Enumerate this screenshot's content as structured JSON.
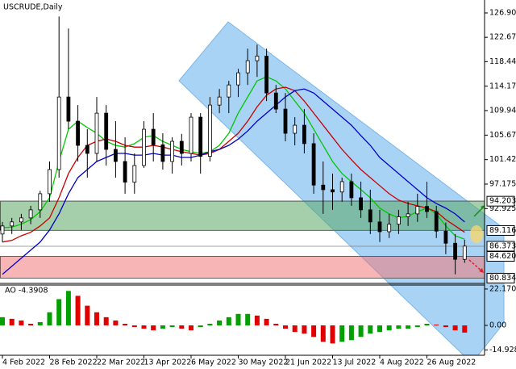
{
  "chart_data": {
    "type": "candlestick",
    "title": "USCRUDE,Daily",
    "categories": [
      "4 Feb 2022",
      null,
      null,
      null,
      null,
      "28 Feb 2022",
      null,
      null,
      null,
      null,
      "22 Mar 2022",
      null,
      null,
      null,
      null,
      "13 Apr 2022",
      null,
      null,
      null,
      null,
      "6 May 2022",
      null,
      null,
      null,
      null,
      "30 May 2022",
      null,
      null,
      null,
      null,
      "21 Jun 2022",
      null,
      null,
      null,
      null,
      "13 Jul 2022",
      null,
      null,
      null,
      null,
      "4 Aug 2022",
      null,
      null,
      null,
      null,
      "26 Aug 2022",
      null,
      null,
      null,
      null
    ],
    "ohlc": [
      [
        88.5,
        90.6,
        87.1,
        89.9
      ],
      [
        89.9,
        91.3,
        88.5,
        90.6
      ],
      [
        90.6,
        92.0,
        89.2,
        91.3
      ],
      [
        91.3,
        93.4,
        90.2,
        92.7
      ],
      [
        92.7,
        96.0,
        91.3,
        95.5
      ],
      [
        95.5,
        101.1,
        94.1,
        99.7
      ],
      [
        99.7,
        126.3,
        98.3,
        112.3
      ],
      [
        112.3,
        124.2,
        106.7,
        108.1
      ],
      [
        108.1,
        110.9,
        101.1,
        103.9
      ],
      [
        103.9,
        106.7,
        98.3,
        102.5
      ],
      [
        102.5,
        112.3,
        101.1,
        109.5
      ],
      [
        109.5,
        110.9,
        100.4,
        103.2
      ],
      [
        103.2,
        108.1,
        98.3,
        101.1
      ],
      [
        101.1,
        105.3,
        95.5,
        97.5
      ],
      [
        97.5,
        102.5,
        95.5,
        100.4
      ],
      [
        100.4,
        108.1,
        100.0,
        106.7
      ],
      [
        106.7,
        109.5,
        101.1,
        104.0
      ],
      [
        104.0,
        106.0,
        99.7,
        101.1
      ],
      [
        101.1,
        105.3,
        99.0,
        104.6
      ],
      [
        104.6,
        105.9,
        100.4,
        102.5
      ],
      [
        102.5,
        109.5,
        101.1,
        108.8
      ],
      [
        108.8,
        109.5,
        99.0,
        102.0
      ],
      [
        102.0,
        112.3,
        101.1,
        110.9
      ],
      [
        110.9,
        113.7,
        109.5,
        112.3
      ],
      [
        112.3,
        115.1,
        109.5,
        114.4
      ],
      [
        114.4,
        117.2,
        112.3,
        116.5
      ],
      [
        116.5,
        120.7,
        114.4,
        118.6
      ],
      [
        118.6,
        121.4,
        115.8,
        119.4
      ],
      [
        119.4,
        120.7,
        111.6,
        113.0
      ],
      [
        113.0,
        114.4,
        109.5,
        110.2
      ],
      [
        110.2,
        113.0,
        104.6,
        106.0
      ],
      [
        106.0,
        108.8,
        103.9,
        107.4
      ],
      [
        107.4,
        110.2,
        102.5,
        104.2
      ],
      [
        104.2,
        106.0,
        95.5,
        97.0
      ],
      [
        97.0,
        101.1,
        92.0,
        96.2
      ],
      [
        96.2,
        99.0,
        92.7,
        95.8
      ],
      [
        95.8,
        98.3,
        94.1,
        97.6
      ],
      [
        97.6,
        99.0,
        93.4,
        94.8
      ],
      [
        94.8,
        97.6,
        91.3,
        92.7
      ],
      [
        92.7,
        96.2,
        88.5,
        90.6
      ],
      [
        90.6,
        92.7,
        87.1,
        88.9
      ],
      [
        88.9,
        92.0,
        87.8,
        90.2
      ],
      [
        90.2,
        92.7,
        88.5,
        91.5
      ],
      [
        91.5,
        94.1,
        89.9,
        92.0
      ],
      [
        92.0,
        95.5,
        90.6,
        93.3
      ],
      [
        93.3,
        97.6,
        91.3,
        92.4
      ],
      [
        92.4,
        93.4,
        87.8,
        89.0
      ],
      [
        89.0,
        90.5,
        85.0,
        86.9
      ],
      [
        86.9,
        88.5,
        81.5,
        84.1
      ],
      [
        84.1,
        87.5,
        83.5,
        86.4
      ]
    ],
    "candle_color": "#000000",
    "series": [
      {
        "color": "#00c800",
        "values": [
          89.6,
          89.7,
          90.2,
          91.0,
          92.4,
          94.8,
          101.1,
          106.7,
          108.1,
          107.0,
          106.0,
          104.6,
          103.9,
          103.6,
          104.2,
          105.3,
          105.6,
          104.6,
          103.9,
          103.2,
          102.8,
          102.5,
          102.8,
          103.9,
          106.0,
          109.5,
          112.3,
          115.1,
          115.8,
          115.1,
          113.7,
          111.6,
          109.5,
          106.7,
          103.9,
          101.1,
          99.0,
          97.6,
          96.2,
          94.8,
          93.0,
          92.0,
          91.3,
          91.6,
          92.4,
          93.0,
          92.0,
          89.9,
          88.2,
          87.6
        ]
      },
      {
        "color": "#c80000",
        "values": [
          87.1,
          87.4,
          88.2,
          88.8,
          89.9,
          91.3,
          94.8,
          99.0,
          101.8,
          103.9,
          104.6,
          105.0,
          104.6,
          103.9,
          103.6,
          103.6,
          103.9,
          103.6,
          103.2,
          102.8,
          102.5,
          102.2,
          102.5,
          103.2,
          104.6,
          106.0,
          108.1,
          110.6,
          112.6,
          113.7,
          114.0,
          113.4,
          111.6,
          109.5,
          107.4,
          105.3,
          103.2,
          101.4,
          99.7,
          98.3,
          96.9,
          95.5,
          94.4,
          93.8,
          93.4,
          93.0,
          92.4,
          91.0,
          89.9,
          88.8
        ]
      },
      {
        "color": "#0000c8",
        "values": [
          81.5,
          82.9,
          84.3,
          85.7,
          87.1,
          89.2,
          92.0,
          95.5,
          98.3,
          99.7,
          101.1,
          101.8,
          102.5,
          102.5,
          102.2,
          102.2,
          102.5,
          102.2,
          102.2,
          101.8,
          101.8,
          102.2,
          102.8,
          103.2,
          103.9,
          105.0,
          106.4,
          108.1,
          109.5,
          110.9,
          112.3,
          113.4,
          113.7,
          113.0,
          111.6,
          110.2,
          108.8,
          107.4,
          105.6,
          103.9,
          101.8,
          100.4,
          99.0,
          97.6,
          96.2,
          94.8,
          93.8,
          93.0,
          92.0,
          90.6
        ]
      }
    ],
    "ylim": [
      80.06,
      129.15
    ],
    "yticks": [
      126.905,
      122.675,
      118.445,
      114.175,
      109.945,
      105.675,
      101.425,
      97.175,
      92.925
    ],
    "levels": [
      94.203,
      89.116,
      86.373,
      {
        "value": 84.62,
        "label": "84.620"
      },
      80.834
    ],
    "zones": [
      {
        "from": 89.116,
        "to": 94.203,
        "color": "#5aa865"
      },
      {
        "from": 80.834,
        "to": 84.62,
        "color": "#f07878"
      }
    ],
    "oscillator": {
      "title": "AO -4.3908",
      "values": [
        5,
        4,
        3,
        1,
        2,
        8,
        16,
        21,
        18,
        12,
        8,
        5,
        3,
        1,
        -1,
        -2,
        -3,
        -2,
        -1,
        -2,
        -3,
        -1,
        1,
        3,
        5,
        7,
        7,
        6,
        4,
        1,
        -2,
        -4,
        -5,
        -7,
        -10,
        -11,
        -10,
        -9,
        -7,
        -5,
        -4,
        -3,
        -2,
        -2,
        -1,
        1,
        0.5,
        -1,
        -3,
        -4.3908
      ],
      "up_color": "#00a000",
      "down_color": "#e00000",
      "ylim": [
        -18.2,
        24.6
      ],
      "yticks": [
        22.1709,
        {
          "value": 0,
          "label": "0.00"
        },
        -14.9287
      ]
    }
  }
}
